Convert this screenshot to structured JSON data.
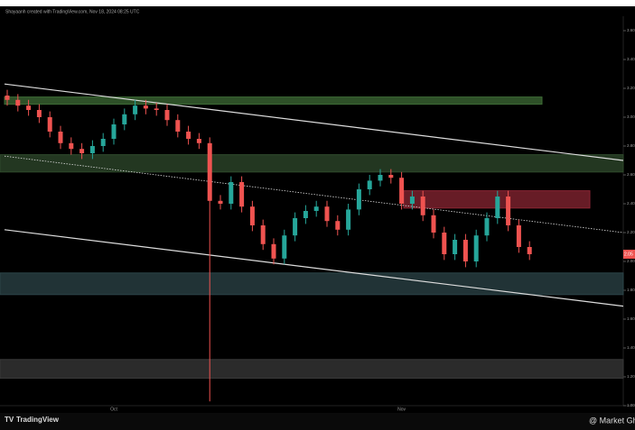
{
  "chart_data": {
    "type": "candlestick",
    "title": "Shayaanh created with TradingView.com, Nov 18, 2024 08:25 UTC",
    "brand": "TradingView",
    "watermark": "@ Market Gh",
    "categories": [
      null,
      null,
      null,
      null,
      null,
      null,
      null,
      null,
      null,
      null,
      "Oct",
      null,
      null,
      null,
      null,
      null,
      null,
      null,
      null,
      null,
      null,
      null,
      null,
      null,
      null,
      null,
      null,
      null,
      null,
      null,
      null,
      null,
      null,
      null,
      null,
      null,
      null,
      "Nov",
      null,
      null,
      null,
      null,
      null,
      null,
      null,
      null,
      null,
      null,
      null,
      null
    ],
    "open": [
      3.15,
      3.12,
      3.08,
      3.05,
      3.0,
      2.9,
      2.82,
      2.78,
      2.75,
      2.8,
      2.85,
      2.95,
      3.02,
      3.08,
      3.06,
      3.05,
      2.98,
      2.9,
      2.85,
      2.82,
      2.42,
      2.4,
      2.55,
      2.38,
      2.25,
      2.12,
      2.02,
      2.18,
      2.3,
      2.35,
      2.38,
      2.28,
      2.22,
      2.36,
      2.5,
      2.56,
      2.6,
      2.58,
      2.4,
      2.45,
      2.32,
      2.2,
      2.05,
      2.15,
      2.0,
      2.18,
      2.3,
      2.45,
      2.25,
      2.1
    ],
    "high": [
      3.19,
      3.16,
      3.12,
      3.09,
      3.04,
      2.94,
      2.86,
      2.82,
      2.84,
      2.89,
      2.99,
      3.06,
      3.12,
      3.12,
      3.1,
      3.09,
      3.02,
      2.94,
      2.89,
      2.86,
      2.46,
      2.59,
      2.59,
      2.42,
      2.29,
      2.16,
      2.22,
      2.34,
      2.39,
      2.42,
      2.42,
      2.32,
      2.4,
      2.54,
      2.6,
      2.64,
      2.64,
      2.62,
      2.49,
      2.49,
      2.36,
      2.24,
      2.19,
      2.19,
      2.22,
      2.34,
      2.49,
      2.49,
      2.29,
      2.14
    ],
    "low": [
      3.08,
      3.04,
      3.01,
      2.96,
      2.86,
      2.78,
      2.74,
      2.71,
      2.71,
      2.76,
      2.81,
      2.91,
      2.98,
      3.02,
      3.01,
      2.94,
      2.86,
      2.81,
      2.78,
      1.03,
      2.36,
      2.36,
      2.34,
      2.21,
      2.08,
      1.98,
      1.98,
      2.14,
      2.26,
      2.31,
      2.24,
      2.18,
      2.18,
      2.32,
      2.46,
      2.52,
      2.54,
      2.36,
      2.36,
      2.28,
      2.16,
      2.01,
      2.01,
      1.96,
      1.96,
      2.14,
      2.26,
      2.21,
      2.06,
      2.01
    ],
    "close": [
      3.12,
      3.08,
      3.05,
      3.0,
      2.9,
      2.82,
      2.78,
      2.75,
      2.8,
      2.85,
      2.95,
      3.02,
      3.08,
      3.06,
      3.05,
      2.98,
      2.9,
      2.85,
      2.82,
      2.42,
      2.4,
      2.55,
      2.38,
      2.25,
      2.12,
      2.02,
      2.18,
      2.3,
      2.35,
      2.38,
      2.28,
      2.22,
      2.36,
      2.5,
      2.56,
      2.6,
      2.58,
      2.4,
      2.45,
      2.32,
      2.2,
      2.05,
      2.15,
      2.0,
      2.18,
      2.3,
      2.45,
      2.25,
      2.1,
      2.05
    ],
    "up_color": "#26a69a",
    "down_color": "#ef5350",
    "ylim": [
      1.0,
      3.7
    ],
    "yticks": [
      {
        "value": 1.0,
        "label": "1.00"
      },
      {
        "value": 1.2,
        "label": "1.20"
      },
      {
        "value": 1.4,
        "label": "1.40"
      },
      {
        "value": 1.6,
        "label": "1.60"
      },
      {
        "value": 1.8,
        "label": "1.80"
      },
      {
        "value": 2.0,
        "label": "2.00"
      },
      {
        "value": 2.2,
        "label": "2.20"
      },
      {
        "value": 2.4,
        "label": "2.40"
      },
      {
        "value": 2.6,
        "label": "2.60"
      },
      {
        "value": 2.8,
        "label": "2.80"
      },
      {
        "value": 3.0,
        "label": "3.00"
      },
      {
        "value": 3.2,
        "label": "3.20"
      },
      {
        "value": 3.4,
        "label": "3.40"
      },
      {
        "value": 3.6,
        "label": "3.60"
      }
    ],
    "zones": [
      {
        "top": 3.14,
        "bottom": 3.09,
        "color": "#3d6b35"
      },
      {
        "top": 2.74,
        "bottom": 2.62,
        "color": "#2f4a2c"
      },
      {
        "top": 2.49,
        "bottom": 2.37,
        "color": "#8a2533"
      },
      {
        "top": 1.92,
        "bottom": 1.77,
        "color": "#2c4448"
      },
      {
        "top": 1.32,
        "bottom": 1.19,
        "color": "#3a3a3a"
      }
    ],
    "trendlines": [
      {
        "start": 3.23,
        "end": 2.7
      },
      {
        "start": 2.73,
        "end": 2.2
      },
      {
        "start": 2.22,
        "end": 1.69
      }
    ]
  }
}
